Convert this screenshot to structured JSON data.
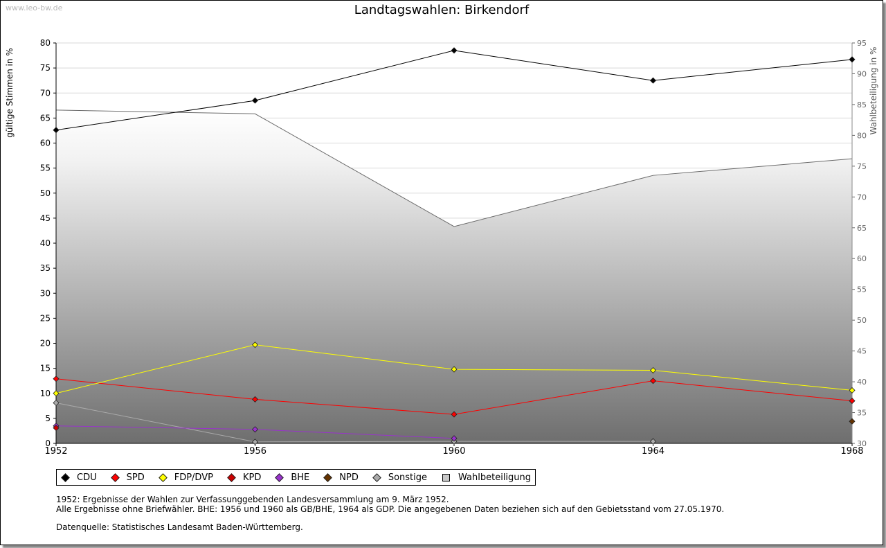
{
  "source": "www.leo-bw.de",
  "chart_data": {
    "type": "line",
    "title": "Landtagswahlen: Birkendorf",
    "ylabel": "gültige Stimmen in %",
    "y2label": "Wahlbeteiligung in %",
    "x": [
      1952,
      1956,
      1960,
      1964,
      1968
    ],
    "xlim": [
      1952,
      1968
    ],
    "ylim": [
      0,
      80
    ],
    "y2lim": [
      30,
      95
    ],
    "yticks": [
      0,
      5,
      10,
      15,
      20,
      25,
      30,
      35,
      40,
      45,
      50,
      55,
      60,
      65,
      70,
      75,
      80
    ],
    "y2ticks": [
      30,
      35,
      40,
      45,
      50,
      55,
      60,
      65,
      70,
      75,
      80,
      85,
      90,
      95
    ],
    "grid": true,
    "legend_position": "bottom",
    "series": [
      {
        "name": "CDU",
        "color": "#000000",
        "values": [
          62.6,
          68.5,
          78.5,
          72.5,
          76.7
        ]
      },
      {
        "name": "SPD",
        "color": "#ff0000",
        "values": [
          12.9,
          8.8,
          5.8,
          12.5,
          8.5
        ]
      },
      {
        "name": "FDP/DVP",
        "color": "#ffff00",
        "values": [
          10.0,
          19.7,
          14.8,
          14.6,
          10.6
        ]
      },
      {
        "name": "KPD",
        "color": "#cc0000",
        "values": [
          3.1,
          null,
          null,
          null,
          null
        ]
      },
      {
        "name": "BHE",
        "color": "#9933cc",
        "values": [
          3.5,
          2.8,
          1.0,
          null,
          null
        ]
      },
      {
        "name": "NPD",
        "color": "#663300",
        "values": [
          null,
          null,
          null,
          null,
          4.4
        ]
      },
      {
        "name": "Sonstige",
        "color": "#aaaaaa",
        "values": [
          8.1,
          0.3,
          0.4,
          0.4,
          null
        ]
      }
    ],
    "turnout": {
      "name": "Wahlbeteiligung",
      "color": "#c8c8c8",
      "values": [
        84.1,
        83.5,
        65.2,
        73.5,
        76.2
      ]
    }
  },
  "notes": {
    "line1": "1952: Ergebnisse der Wahlen zur Verfassunggebenden Landesversammlung am 9. März 1952.",
    "line2": "Alle Ergebnisse ohne Briefwähler. BHE: 1956 und 1960 als GB/BHE, 1964 als GDP. Die angegebenen Daten beziehen sich auf den Gebietsstand vom 27.05.1970.",
    "source_line": "Datenquelle: Statistisches Landesamt Baden-Württemberg."
  }
}
